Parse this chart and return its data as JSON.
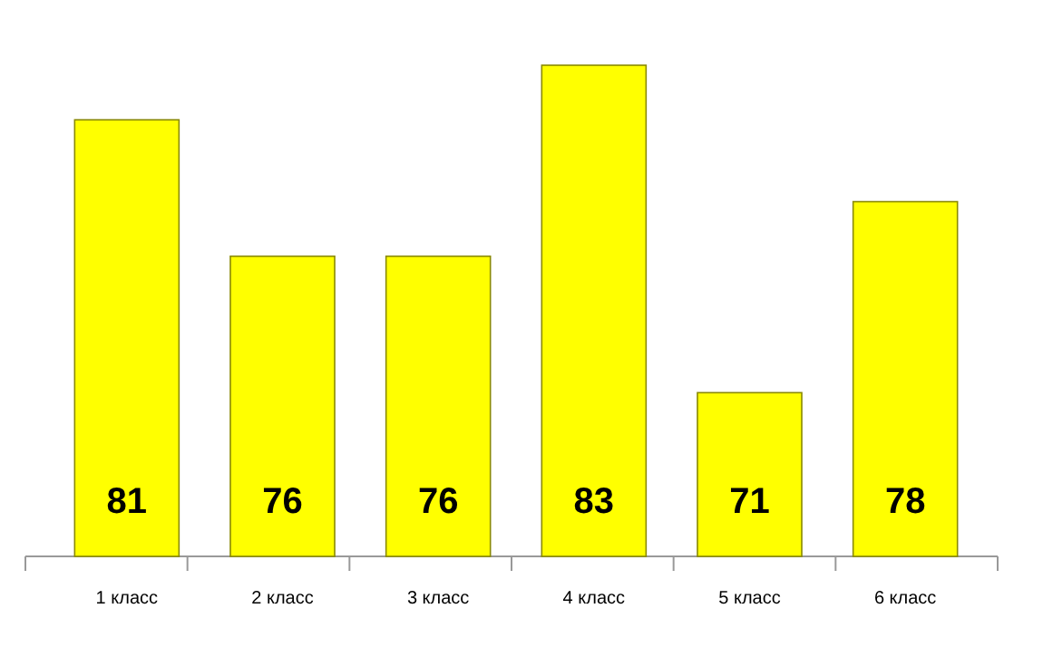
{
  "chart_data": {
    "type": "bar",
    "categories": [
      "1 класс",
      "2 класс",
      "3 класс",
      "4 класс",
      "5 класс",
      "6 класс"
    ],
    "values": [
      81,
      76,
      76,
      83,
      71,
      78
    ],
    "color": "#ffff00",
    "ylim": [
      65,
      83
    ],
    "tick_labels": "x",
    "data_labels": true
  }
}
